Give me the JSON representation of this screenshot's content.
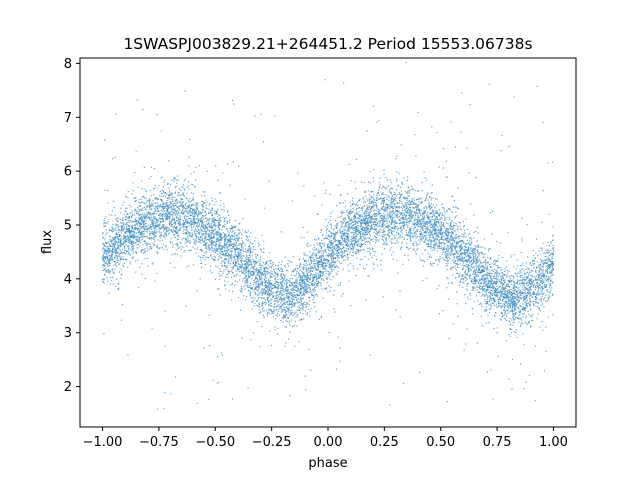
{
  "chart_data": {
    "type": "scatter",
    "title": "1SWASPJ003829.21+264451.2 Period 15553.06738s",
    "xlabel": "phase",
    "ylabel": "flux",
    "xlim": [
      -1.1,
      1.1
    ],
    "ylim": [
      1.25,
      8.1
    ],
    "xticks": [
      -1.0,
      -0.75,
      -0.5,
      -0.25,
      0.0,
      0.25,
      0.5,
      0.75,
      1.0
    ],
    "xtick_labels": [
      "−1.00",
      "−0.75",
      "−0.50",
      "−0.25",
      "0.00",
      "0.25",
      "0.50",
      "0.75",
      "1.00"
    ],
    "yticks": [
      2,
      3,
      4,
      5,
      6,
      7,
      8
    ],
    "ytick_labels": [
      "2",
      "3",
      "4",
      "5",
      "6",
      "7",
      "8"
    ],
    "grid": false,
    "series_color": "#3b8ac4",
    "x_range": [
      -1.0,
      1.0
    ],
    "trend": {
      "x": [
        -1.0,
        -0.9,
        -0.8,
        -0.7,
        -0.6,
        -0.5,
        -0.4,
        -0.3,
        -0.2,
        -0.17,
        -0.1,
        0.0,
        0.1,
        0.2,
        0.3,
        0.4,
        0.5,
        0.6,
        0.7,
        0.8,
        0.83,
        0.9,
        1.0
      ],
      "y": [
        4.4,
        4.8,
        5.05,
        5.2,
        5.1,
        4.8,
        4.4,
        3.95,
        3.7,
        3.65,
        3.9,
        4.45,
        4.85,
        5.1,
        5.2,
        5.1,
        4.85,
        4.45,
        4.0,
        3.7,
        3.65,
        3.8,
        4.3
      ]
    }
  }
}
